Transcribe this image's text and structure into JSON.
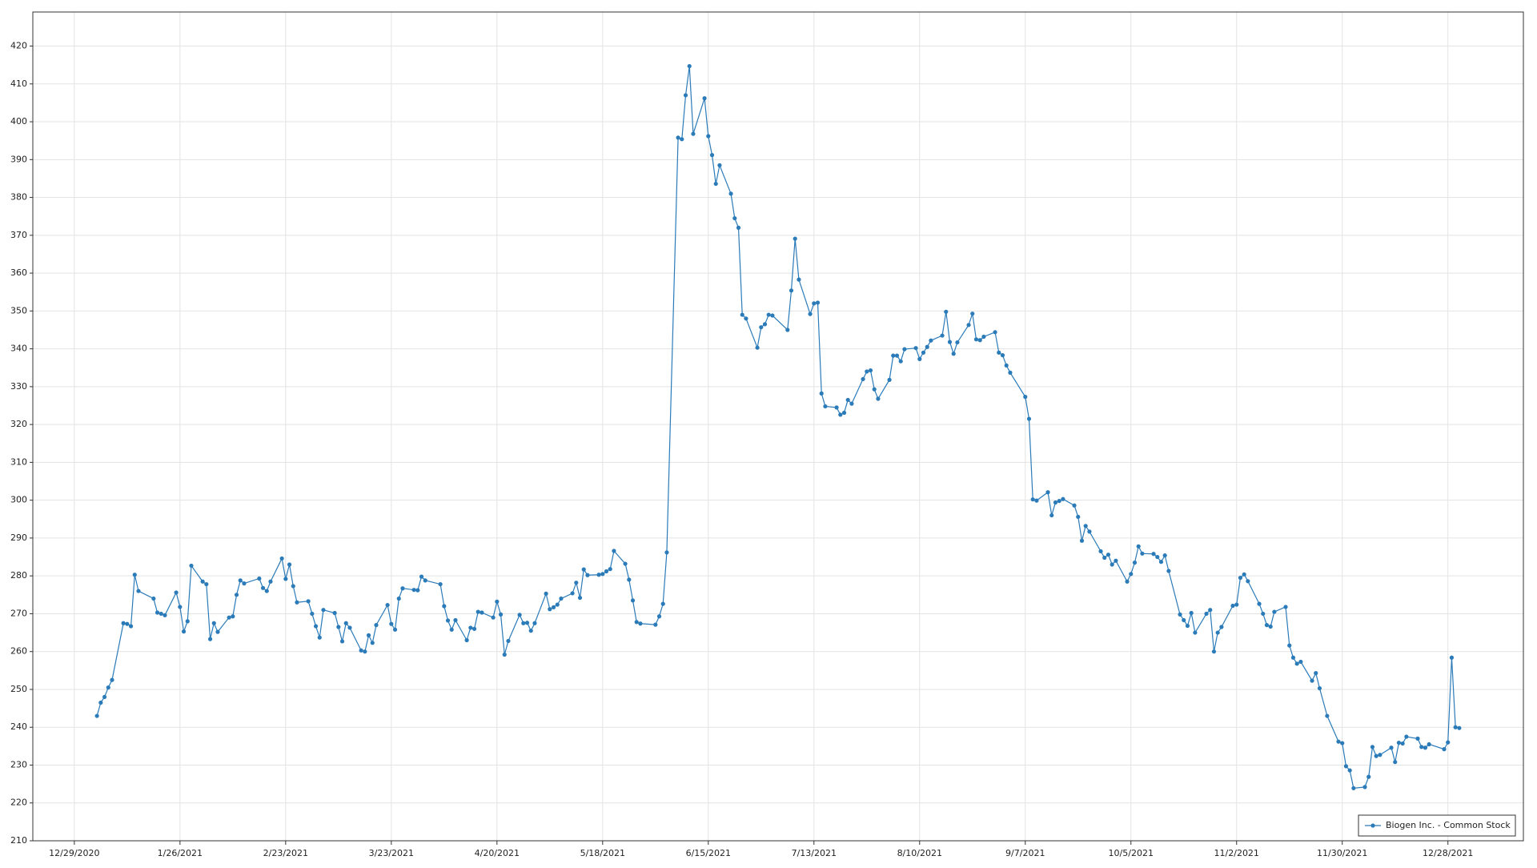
{
  "chart_data": {
    "type": "line",
    "x": [
      "1/4/2021",
      "1/5/2021",
      "1/6/2021",
      "1/7/2021",
      "1/8/2021",
      "1/11/2021",
      "1/12/2021",
      "1/13/2021",
      "1/14/2021",
      "1/15/2021",
      "1/19/2021",
      "1/20/2021",
      "1/21/2021",
      "1/22/2021",
      "1/25/2021",
      "1/26/2021",
      "1/27/2021",
      "1/28/2021",
      "1/29/2021",
      "2/1/2021",
      "2/2/2021",
      "2/3/2021",
      "2/4/2021",
      "2/5/2021",
      "2/8/2021",
      "2/9/2021",
      "2/10/2021",
      "2/11/2021",
      "2/12/2021",
      "2/16/2021",
      "2/17/2021",
      "2/18/2021",
      "2/19/2021",
      "2/22/2021",
      "2/23/2021",
      "2/24/2021",
      "2/25/2021",
      "2/26/2021",
      "3/1/2021",
      "3/2/2021",
      "3/3/2021",
      "3/4/2021",
      "3/5/2021",
      "3/8/2021",
      "3/9/2021",
      "3/10/2021",
      "3/11/2021",
      "3/12/2021",
      "3/15/2021",
      "3/16/2021",
      "3/17/2021",
      "3/18/2021",
      "3/19/2021",
      "3/22/2021",
      "3/23/2021",
      "3/24/2021",
      "3/25/2021",
      "3/26/2021",
      "3/29/2021",
      "3/30/2021",
      "3/31/2021",
      "4/1/2021",
      "4/5/2021",
      "4/6/2021",
      "4/7/2021",
      "4/8/2021",
      "4/9/2021",
      "4/12/2021",
      "4/13/2021",
      "4/14/2021",
      "4/15/2021",
      "4/16/2021",
      "4/19/2021",
      "4/20/2021",
      "4/21/2021",
      "4/22/2021",
      "4/23/2021",
      "4/26/2021",
      "4/27/2021",
      "4/28/2021",
      "4/29/2021",
      "4/30/2021",
      "5/3/2021",
      "5/4/2021",
      "5/5/2021",
      "5/6/2021",
      "5/7/2021",
      "5/10/2021",
      "5/11/2021",
      "5/12/2021",
      "5/13/2021",
      "5/14/2021",
      "5/17/2021",
      "5/18/2021",
      "5/19/2021",
      "5/20/2021",
      "5/21/2021",
      "5/24/2021",
      "5/25/2021",
      "5/26/2021",
      "5/27/2021",
      "5/28/2021",
      "6/1/2021",
      "6/2/2021",
      "6/3/2021",
      "6/4/2021",
      "6/7/2021",
      "6/8/2021",
      "6/9/2021",
      "6/10/2021",
      "6/11/2021",
      "6/14/2021",
      "6/15/2021",
      "6/16/2021",
      "6/17/2021",
      "6/18/2021",
      "6/21/2021",
      "6/22/2021",
      "6/23/2021",
      "6/24/2021",
      "6/25/2021",
      "6/28/2021",
      "6/29/2021",
      "6/30/2021",
      "7/1/2021",
      "7/2/2021",
      "7/6/2021",
      "7/7/2021",
      "7/8/2021",
      "7/9/2021",
      "7/12/2021",
      "7/13/2021",
      "7/14/2021",
      "7/15/2021",
      "7/16/2021",
      "7/19/2021",
      "7/20/2021",
      "7/21/2021",
      "7/22/2021",
      "7/23/2021",
      "7/26/2021",
      "7/27/2021",
      "7/28/2021",
      "7/29/2021",
      "7/30/2021",
      "8/2/2021",
      "8/3/2021",
      "8/4/2021",
      "8/5/2021",
      "8/6/2021",
      "8/9/2021",
      "8/10/2021",
      "8/11/2021",
      "8/12/2021",
      "8/13/2021",
      "8/16/2021",
      "8/17/2021",
      "8/18/2021",
      "8/19/2021",
      "8/20/2021",
      "8/23/2021",
      "8/24/2021",
      "8/25/2021",
      "8/26/2021",
      "8/27/2021",
      "8/30/2021",
      "8/31/2021",
      "9/1/2021",
      "9/2/2021",
      "9/3/2021",
      "9/7/2021",
      "9/8/2021",
      "9/9/2021",
      "9/10/2021",
      "9/13/2021",
      "9/14/2021",
      "9/15/2021",
      "9/16/2021",
      "9/17/2021",
      "9/20/2021",
      "9/21/2021",
      "9/22/2021",
      "9/23/2021",
      "9/24/2021",
      "9/27/2021",
      "9/28/2021",
      "9/29/2021",
      "9/30/2021",
      "10/1/2021",
      "10/4/2021",
      "10/5/2021",
      "10/6/2021",
      "10/7/2021",
      "10/8/2021",
      "10/11/2021",
      "10/12/2021",
      "10/13/2021",
      "10/14/2021",
      "10/15/2021",
      "10/18/2021",
      "10/19/2021",
      "10/20/2021",
      "10/21/2021",
      "10/22/2021",
      "10/25/2021",
      "10/26/2021",
      "10/27/2021",
      "10/28/2021",
      "10/29/2021",
      "11/1/2021",
      "11/2/2021",
      "11/3/2021",
      "11/4/2021",
      "11/5/2021",
      "11/8/2021",
      "11/9/2021",
      "11/10/2021",
      "11/11/2021",
      "11/12/2021",
      "11/15/2021",
      "11/16/2021",
      "11/17/2021",
      "11/18/2021",
      "11/19/2021",
      "11/22/2021",
      "11/23/2021",
      "11/24/2021",
      "11/26/2021",
      "11/29/2021",
      "11/30/2021",
      "12/1/2021",
      "12/2/2021",
      "12/3/2021",
      "12/6/2021",
      "12/7/2021",
      "12/8/2021",
      "12/9/2021",
      "12/10/2021",
      "12/13/2021",
      "12/14/2021",
      "12/15/2021",
      "12/16/2021",
      "12/17/2021",
      "12/20/2021",
      "12/21/2021",
      "12/22/2021",
      "12/23/2021",
      "12/27/2021",
      "12/28/2021",
      "12/29/2021",
      "12/30/2021",
      "12/31/2021"
    ],
    "series": [
      {
        "name": "Biogen Inc. - Common Stock",
        "color": "#2b7bb9",
        "values": [
          243,
          246.5,
          248,
          250.5,
          252.5,
          267.5,
          267.3,
          266.7,
          280.3,
          276,
          274,
          270.3,
          270,
          269.6,
          275.6,
          271.8,
          265.3,
          268,
          282.7,
          278.5,
          277.8,
          263.3,
          267.5,
          265.2,
          269,
          269.3,
          275,
          278.8,
          278,
          279.3,
          276.8,
          276,
          278.5,
          284.6,
          279.2,
          283,
          277.3,
          273,
          273.3,
          270,
          266.7,
          263.7,
          271,
          270.2,
          266.5,
          262.7,
          267.5,
          266.3,
          260.3,
          260,
          264.3,
          262.3,
          267,
          272.3,
          267.3,
          265.8,
          274,
          276.7,
          276.3,
          276.2,
          279.8,
          278.8,
          277.8,
          272,
          268.2,
          265.8,
          268.3,
          263,
          266.3,
          266,
          270.5,
          270.3,
          269,
          273.2,
          269.8,
          259.2,
          262.8,
          269.7,
          267.5,
          267.6,
          265.5,
          267.5,
          275.3,
          271.2,
          271.7,
          272.4,
          274,
          275.4,
          278.2,
          274.2,
          281.7,
          280.2,
          280.3,
          280.5,
          281.2,
          281.8,
          286.6,
          283.2,
          279,
          273.5,
          267.8,
          267.4,
          267.1,
          269.3,
          272.6,
          286.2,
          395.8,
          395.4,
          407,
          414.7,
          396.8,
          406.2,
          396.2,
          391.2,
          383.6,
          388.5,
          381,
          374.5,
          372,
          349,
          348,
          340.3,
          345.7,
          346.5,
          349,
          348.8,
          345,
          355.4,
          369.1,
          358.3,
          349.2,
          352,
          352.2,
          328.2,
          324.8,
          324.5,
          322.6,
          323.1,
          326.5,
          325.5,
          332,
          334,
          334.3,
          329.3,
          326.8,
          331.8,
          338.2,
          338.2,
          336.7,
          339.9,
          340.2,
          337.3,
          339,
          340.5,
          342.2,
          343.5,
          349.8,
          341.8,
          338.7,
          341.7,
          346.3,
          349.3,
          342.5,
          342.3,
          343.2,
          344.4,
          339,
          338.3,
          335.6,
          333.7,
          327.3,
          321.5,
          300.2,
          299.9,
          302.1,
          296,
          299.4,
          299.8,
          300.3,
          298.6,
          295.6,
          289.3,
          293.2,
          291.7,
          286.5,
          284.8,
          285.6,
          283,
          284,
          278.5,
          280.5,
          283.5,
          287.8,
          285.9,
          285.8,
          285,
          283.7,
          285.4,
          281.3,
          269.8,
          268.3,
          266.8,
          270.2,
          265,
          270,
          271,
          260,
          265,
          266.5,
          272.1,
          272.4,
          279.5,
          280.4,
          278.6,
          272.6,
          270,
          267,
          266.6,
          270.5,
          271.8,
          261.6,
          258.4,
          256.8,
          257.3,
          252.3,
          254.3,
          250.3,
          243,
          236.2,
          235.8,
          229.7,
          228.6,
          223.9,
          224.2,
          226.9,
          234.8,
          232.4,
          232.7,
          234.6,
          230.8,
          235.9,
          235.7,
          237.5,
          237,
          234.8,
          234.6,
          235.5,
          234.2,
          236,
          258.4,
          240,
          239.8
        ]
      }
    ],
    "xlim": [
      "12/18/2020",
      "1/17/2022"
    ],
    "xticks": [
      "12/29/2020",
      "1/26/2021",
      "2/23/2021",
      "3/23/2021",
      "4/20/2021",
      "5/18/2021",
      "6/15/2021",
      "7/13/2021",
      "8/10/2021",
      "9/7/2021",
      "10/5/2021",
      "11/2/2021",
      "11/30/2021",
      "12/28/2021"
    ],
    "ylim": [
      210,
      429
    ],
    "yticks": [
      210,
      220,
      230,
      240,
      250,
      260,
      270,
      280,
      290,
      300,
      310,
      320,
      330,
      340,
      350,
      360,
      370,
      380,
      390,
      400,
      410,
      420
    ],
    "grid": true,
    "legend": "bottom-right",
    "markers": true
  }
}
